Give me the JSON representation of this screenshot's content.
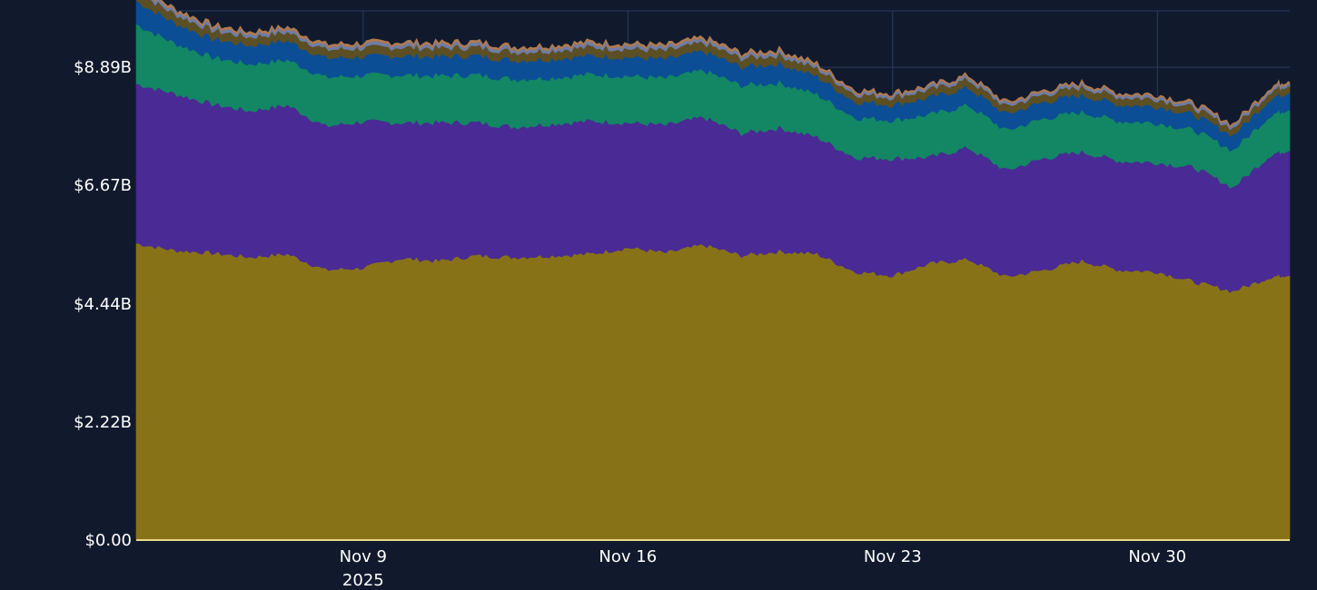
{
  "chart_data": {
    "type": "area",
    "stacked": true,
    "title": "",
    "xlabel": "",
    "ylabel": "",
    "x_range": [
      "2025-11-03",
      "2025-12-03T12:00"
    ],
    "ylim": [
      0,
      9.95
    ],
    "y_unit": "billions USD",
    "grid": true,
    "y_ticks": [
      {
        "value": 0,
        "label": "$0.00"
      },
      {
        "value": 2.22,
        "label": "$2.22B"
      },
      {
        "value": 4.44,
        "label": "$4.44B"
      },
      {
        "value": 6.67,
        "label": "$6.67B"
      },
      {
        "value": 8.89,
        "label": "$8.89B"
      }
    ],
    "x_ticks": [
      {
        "date": "2025-11-09",
        "label": "Nov 9",
        "sublabel": "2025"
      },
      {
        "date": "2025-11-16",
        "label": "Nov 16",
        "sublabel": ""
      },
      {
        "date": "2025-11-23",
        "label": "Nov 23",
        "sublabel": ""
      },
      {
        "date": "2025-11-30",
        "label": "Nov 30",
        "sublabel": ""
      }
    ],
    "x": [
      "2025-11-03",
      "2025-11-04",
      "2025-11-05",
      "2025-11-06",
      "2025-11-07",
      "2025-11-08",
      "2025-11-09",
      "2025-11-10",
      "2025-11-11",
      "2025-11-12",
      "2025-11-13",
      "2025-11-14",
      "2025-11-15",
      "2025-11-16",
      "2025-11-17",
      "2025-11-18",
      "2025-11-19",
      "2025-11-20",
      "2025-11-21",
      "2025-11-22",
      "2025-11-23",
      "2025-11-24",
      "2025-11-25",
      "2025-11-26",
      "2025-11-27",
      "2025-11-28",
      "2025-11-29",
      "2025-11-30",
      "2025-12-01",
      "2025-12-02",
      "2025-12-03",
      "2025-12-03T12:00"
    ],
    "series": [
      {
        "color": "#877218",
        "values": [
          5.58,
          5.45,
          5.4,
          5.32,
          5.38,
          5.08,
          5.12,
          5.3,
          5.25,
          5.35,
          5.32,
          5.35,
          5.38,
          5.5,
          5.4,
          5.55,
          5.35,
          5.43,
          5.38,
          5.05,
          4.98,
          5.2,
          5.28,
          4.95,
          5.08,
          5.25,
          5.08,
          5.05,
          4.85,
          4.68,
          4.95,
          5.0
        ]
      },
      {
        "color": "#4a2a94",
        "values": [
          3.0,
          2.95,
          2.8,
          2.75,
          2.8,
          2.7,
          2.75,
          2.55,
          2.6,
          2.5,
          2.45,
          2.48,
          2.5,
          2.35,
          2.4,
          2.4,
          2.3,
          2.32,
          2.2,
          2.15,
          2.2,
          2.0,
          2.1,
          2.0,
          2.1,
          2.05,
          2.05,
          2.05,
          2.15,
          1.95,
          2.3,
          2.35
        ]
      },
      {
        "color": "#138664",
        "values": [
          1.12,
          0.95,
          0.88,
          0.88,
          0.85,
          0.92,
          0.87,
          0.9,
          0.88,
          0.9,
          0.9,
          0.87,
          0.88,
          0.88,
          0.88,
          0.88,
          0.9,
          0.85,
          0.8,
          0.75,
          0.72,
          0.8,
          0.8,
          0.75,
          0.75,
          0.75,
          0.75,
          0.75,
          0.7,
          0.7,
          0.75,
          0.77
        ]
      },
      {
        "color": "#0b4e95",
        "values": [
          0.44,
          0.38,
          0.35,
          0.35,
          0.36,
          0.36,
          0.35,
          0.36,
          0.36,
          0.36,
          0.35,
          0.35,
          0.35,
          0.35,
          0.36,
          0.36,
          0.35,
          0.36,
          0.34,
          0.3,
          0.29,
          0.32,
          0.33,
          0.31,
          0.31,
          0.32,
          0.31,
          0.31,
          0.29,
          0.28,
          0.31,
          0.32
        ]
      },
      {
        "color": "#5c4f24",
        "values": [
          0.18,
          0.17,
          0.16,
          0.16,
          0.16,
          0.16,
          0.16,
          0.16,
          0.16,
          0.16,
          0.16,
          0.16,
          0.16,
          0.16,
          0.16,
          0.16,
          0.16,
          0.16,
          0.15,
          0.14,
          0.14,
          0.15,
          0.15,
          0.14,
          0.14,
          0.15,
          0.14,
          0.14,
          0.13,
          0.13,
          0.14,
          0.14
        ]
      },
      {
        "color": "#6e7ca6",
        "values": [
          0.07,
          0.06,
          0.06,
          0.06,
          0.06,
          0.06,
          0.06,
          0.06,
          0.06,
          0.06,
          0.06,
          0.06,
          0.06,
          0.06,
          0.06,
          0.06,
          0.06,
          0.06,
          0.05,
          0.05,
          0.05,
          0.05,
          0.05,
          0.05,
          0.05,
          0.05,
          0.05,
          0.05,
          0.05,
          0.05,
          0.05,
          0.05
        ]
      },
      {
        "color": "#b07a4e",
        "values": [
          0.04,
          0.04,
          0.04,
          0.04,
          0.04,
          0.04,
          0.04,
          0.04,
          0.04,
          0.04,
          0.04,
          0.04,
          0.04,
          0.04,
          0.04,
          0.04,
          0.04,
          0.04,
          0.04,
          0.03,
          0.03,
          0.03,
          0.03,
          0.03,
          0.03,
          0.03,
          0.03,
          0.03,
          0.03,
          0.03,
          0.03,
          0.03
        ]
      }
    ],
    "colors": {
      "background": "#111a2d",
      "grid": "#2a3b5c",
      "axis_line": "#e6d98a"
    }
  }
}
